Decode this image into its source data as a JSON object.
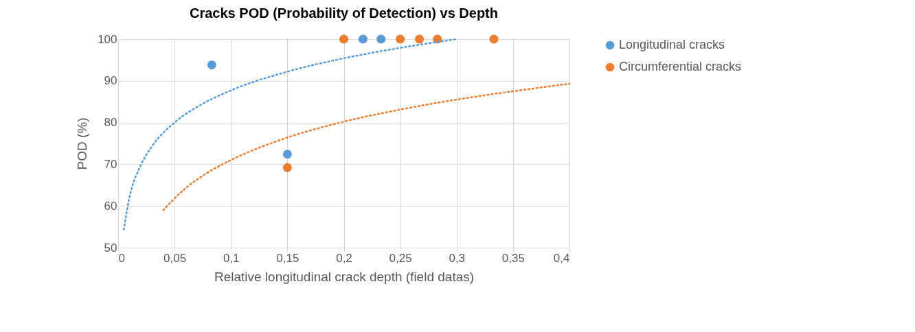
{
  "chart_data": {
    "type": "scatter",
    "title": "Cracks POD (Probability of Detection) vs Depth",
    "xlabel": "Relative longitudinal crack depth (field datas)",
    "ylabel": "POD (%)",
    "xlim": [
      0,
      0.4
    ],
    "xticks": [
      0,
      {
        "value": 0.05,
        "label": "0,05"
      },
      {
        "value": 0.1,
        "label": "0,1"
      },
      {
        "value": 0.15,
        "label": "0,15"
      },
      {
        "value": 0.2,
        "label": "0,2"
      },
      {
        "value": 0.25,
        "label": "0,25"
      },
      {
        "value": 0.3,
        "label": "0,3"
      },
      {
        "value": 0.35,
        "label": "0,35"
      },
      {
        "value": 0.4,
        "label": "0,4"
      }
    ],
    "ylim": [
      50,
      100
    ],
    "yticks": [
      50,
      60,
      70,
      80,
      90,
      100
    ],
    "grid": true,
    "legend": "right",
    "marker": "circle",
    "series": [
      {
        "name": "Longitudinal cracks",
        "color": "#5b9bd5",
        "x": [
          0.083,
          0.15,
          0.217,
          0.233
        ],
        "values": [
          93.8,
          72.4,
          100,
          100
        ]
      },
      {
        "name": "Circumferential cracks",
        "color": "#ed7d31",
        "x": [
          0.15,
          0.2,
          0.25,
          0.267,
          0.283,
          0.333
        ],
        "values": [
          69.2,
          100,
          100,
          100,
          100,
          100
        ]
      },
      {
        "type": "line",
        "line_style": "dotted",
        "marker": "none",
        "color": "#5b9bd5",
        "x": [
          0.005,
          0.01,
          0.02,
          0.03,
          0.05,
          0.075,
          0.1,
          0.15,
          0.2,
          0.25,
          0.3
        ],
        "values": [
          54.3,
          62.0,
          69.7,
          74.3,
          80.0,
          84.5,
          87.7,
          92.2,
          95.4,
          97.9,
          100.0
        ]
      },
      {
        "type": "line",
        "line_style": "dotted",
        "marker": "none",
        "color": "#ed7d31",
        "x": [
          0.04,
          0.06,
          0.08,
          0.1,
          0.15,
          0.2,
          0.25,
          0.3,
          0.35,
          0.4
        ],
        "values": [
          59.0,
          64.3,
          68.1,
          71.0,
          76.4,
          80.2,
          83.1,
          85.5,
          87.5,
          89.3
        ]
      }
    ]
  }
}
